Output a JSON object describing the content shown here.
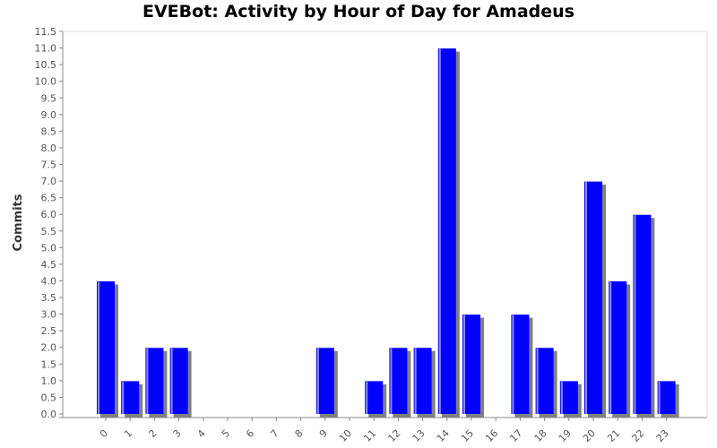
{
  "chart_data": {
    "type": "bar",
    "title": "EVEBot: Activity by Hour of Day for Amadeus",
    "xlabel": "",
    "ylabel": "Commits",
    "categories": [
      "0",
      "1",
      "2",
      "3",
      "4",
      "5",
      "6",
      "7",
      "8",
      "9",
      "10",
      "11",
      "12",
      "13",
      "14",
      "15",
      "16",
      "17",
      "18",
      "19",
      "20",
      "21",
      "22",
      "23"
    ],
    "values": [
      4,
      1,
      2,
      2,
      0,
      0,
      0,
      0,
      0,
      2,
      0,
      1,
      2,
      2,
      11,
      3,
      0,
      3,
      2,
      1,
      7,
      4,
      6,
      1
    ],
    "ylim": [
      0,
      11.5
    ],
    "ytick_step": 0.5,
    "grid": false,
    "legend": "none",
    "colors": {
      "bar": "#0000ff",
      "bar_highlight": "#8c8cff",
      "shadow": "#808080",
      "axis": "#888888"
    }
  }
}
